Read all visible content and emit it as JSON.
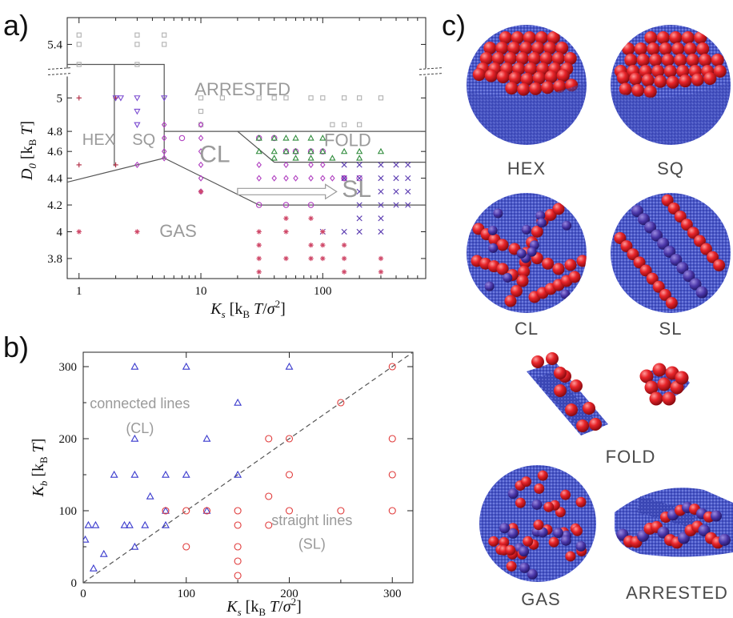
{
  "panel_labels": {
    "a": "a)",
    "b": "b)",
    "c": "c)"
  },
  "colors": {
    "gas": "#d04a6a",
    "hex": "#b02840",
    "sq": "#7a4ad0",
    "cl": "#b040c0",
    "fold": "#2e8a3a",
    "sl": "#5a3ab0",
    "arrested": "#b0b0b0",
    "cl_b": "#3a3acd",
    "sl_b": "#e03a3a",
    "boundary": "#555555",
    "region": "#9a9a9a"
  },
  "chart_data": [
    {
      "id": "a",
      "type": "scatter",
      "xlabel": "K_s  [k_B T/σ^2]",
      "ylabel": "D_0  [k_B T]",
      "xscale": "log",
      "xlim": [
        0.8,
        700
      ],
      "ylim": [
        3.65,
        5.6
      ],
      "yaxis_break": "between 5.0 and 5.4",
      "xticks": [
        {
          "v": 1,
          "label": "1"
        },
        {
          "v": 10,
          "label": "10"
        },
        {
          "v": 100,
          "label": "100"
        }
      ],
      "yticks": [
        {
          "v": 3.8,
          "label": "3.8"
        },
        {
          "v": 4.0,
          "label": "4"
        },
        {
          "v": 4.2,
          "label": "4.2"
        },
        {
          "v": 4.4,
          "label": "4.4"
        },
        {
          "v": 4.6,
          "label": "4.6"
        },
        {
          "v": 4.75,
          "label": "4.8"
        },
        {
          "v": 5.0,
          "label": "5"
        },
        {
          "v": 5.4,
          "label": "5.4"
        }
      ],
      "regions": [
        {
          "name": "ARRESTED",
          "x": 22,
          "y": 5.02,
          "size": 22
        },
        {
          "name": "HEX",
          "x": 1.45,
          "y": 4.65,
          "size": 20
        },
        {
          "name": "SQ",
          "x": 3.4,
          "y": 4.65,
          "size": 20
        },
        {
          "name": "FOLD",
          "x": 160,
          "y": 4.64,
          "size": 22
        },
        {
          "name": "CL",
          "x": 13,
          "y": 4.52,
          "size": 30
        },
        {
          "name": "SL",
          "x": 190,
          "y": 4.26,
          "size": 30
        },
        {
          "name": "GAS",
          "x": 6.5,
          "y": 3.96,
          "size": 22
        }
      ],
      "boundaries": [
        [
          [
            0.8,
            5.25
          ],
          [
            5,
            5.25
          ],
          [
            5,
            4.55
          ]
        ],
        [
          [
            1.95,
            5.25
          ],
          [
            1.95,
            4.49
          ]
        ],
        [
          [
            0.8,
            4.37
          ],
          [
            5,
            4.55
          ],
          [
            30,
            4.2
          ],
          [
            700,
            4.2
          ]
        ],
        [
          [
            5,
            4.75
          ],
          [
            700,
            4.75
          ]
        ],
        [
          [
            20,
            4.75
          ],
          [
            40,
            4.52
          ],
          [
            700,
            4.52
          ]
        ]
      ],
      "arrow": {
        "from": [
          20,
          4.3
        ],
        "to": [
          130,
          4.3
        ]
      },
      "series": [
        {
          "phase": "arrested",
          "marker": "square",
          "x": [
            1,
            1,
            1,
            3,
            3,
            3,
            5,
            5,
            10,
            10,
            10,
            15,
            30,
            40,
            50,
            80,
            100,
            150,
            200,
            300,
            120,
            150,
            200
          ],
          "y": [
            5.47,
            5.4,
            5.25,
            5.47,
            5.4,
            5.25,
            5.47,
            5.4,
            5.0,
            4.9,
            4.8,
            5.0,
            5.0,
            5.0,
            5.0,
            5.0,
            5.0,
            5.0,
            5.0,
            5.0,
            4.8,
            4.8,
            4.8
          ]
        },
        {
          "phase": "hex",
          "marker": "plus",
          "x": [
            1,
            1,
            2,
            2
          ],
          "y": [
            5.0,
            4.5,
            5.0,
            4.5
          ]
        },
        {
          "phase": "sq",
          "marker": "triangle-down",
          "x": [
            2.0,
            2.2,
            3,
            3,
            3,
            5
          ],
          "y": [
            5.0,
            5.0,
            5.0,
            4.9,
            4.8,
            5.0
          ]
        },
        {
          "phase": "cl",
          "marker": "diamond",
          "x": [
            5,
            5,
            5,
            5,
            10,
            10,
            10,
            10,
            10,
            10,
            3,
            30,
            50,
            80,
            100,
            30,
            40,
            50,
            60,
            80,
            100,
            120,
            150,
            30,
            50,
            80,
            100
          ],
          "y": [
            4.8,
            4.7,
            4.6,
            4.55,
            4.8,
            4.7,
            4.6,
            4.5,
            4.4,
            4.3,
            4.5,
            4.5,
            4.5,
            4.5,
            4.5,
            4.4,
            4.4,
            4.4,
            4.4,
            4.4,
            4.4,
            4.4,
            4.4,
            4.3,
            4.3,
            4.3,
            4.3
          ]
        },
        {
          "phase": "cl-circle",
          "marker": "circle",
          "x": [
            7,
            30,
            40,
            50,
            60,
            80,
            100,
            150,
            200,
            30,
            50,
            80
          ],
          "y": [
            4.7,
            4.7,
            4.7,
            4.6,
            4.6,
            4.6,
            4.6,
            4.4,
            4.4,
            4.2,
            4.2,
            4.2
          ]
        },
        {
          "phase": "fold",
          "marker": "triangle",
          "x": [
            30,
            40,
            50,
            60,
            80,
            100,
            30,
            40,
            50,
            60,
            80,
            100,
            150,
            200,
            300,
            40,
            60,
            80,
            120,
            200
          ],
          "y": [
            4.7,
            4.7,
            4.7,
            4.7,
            4.7,
            4.7,
            4.6,
            4.6,
            4.6,
            4.6,
            4.6,
            4.6,
            4.6,
            4.6,
            4.6,
            4.55,
            4.55,
            4.55,
            4.55,
            4.55
          ]
        },
        {
          "phase": "sl",
          "marker": "cross",
          "x": [
            150,
            200,
            300,
            400,
            500,
            150,
            200,
            300,
            400,
            500,
            200,
            300,
            400,
            500,
            200,
            300,
            400,
            500,
            200,
            300,
            150,
            100,
            200,
            300
          ],
          "y": [
            4.5,
            4.5,
            4.5,
            4.5,
            4.5,
            4.4,
            4.4,
            4.4,
            4.4,
            4.4,
            4.3,
            4.3,
            4.3,
            4.3,
            4.2,
            4.2,
            4.2,
            4.2,
            4.1,
            4.1,
            4.0,
            4.0,
            4.0,
            4.0
          ]
        },
        {
          "phase": "gas",
          "marker": "asterisk",
          "x": [
            1,
            3,
            10,
            30,
            30,
            30,
            30,
            50,
            50,
            50,
            80,
            80,
            80,
            100,
            100,
            100,
            150,
            150,
            150,
            300,
            300
          ],
          "y": [
            4.0,
            4.0,
            4.3,
            4.0,
            3.9,
            3.8,
            3.7,
            4.1,
            4.0,
            3.8,
            4.1,
            3.9,
            3.8,
            4.0,
            3.9,
            3.8,
            3.9,
            3.8,
            3.7,
            3.8,
            3.7
          ]
        }
      ]
    },
    {
      "id": "b",
      "type": "scatter",
      "xlabel": "K_s  [k_B T/σ^2]",
      "ylabel": "K_b  [k_B T]",
      "xlim": [
        0,
        320
      ],
      "ylim": [
        0,
        320
      ],
      "xticks": [
        0,
        100,
        200,
        300
      ],
      "yticks": [
        0,
        100,
        200,
        300
      ],
      "diagonal": [
        [
          0,
          0
        ],
        [
          320,
          320
        ]
      ],
      "annotations": [
        {
          "text": "connected lines",
          "x": 55,
          "y": 242
        },
        {
          "text": "(CL)",
          "x": 55,
          "y": 208
        },
        {
          "text": "straight lines",
          "x": 222,
          "y": 80
        },
        {
          "text": "(SL)",
          "x": 222,
          "y": 47
        }
      ],
      "series": [
        {
          "name": "CL",
          "marker": "triangle",
          "x": [
            2,
            5,
            10,
            12,
            20,
            30,
            40,
            45,
            50,
            50,
            50,
            50,
            60,
            65,
            80,
            80,
            80,
            100,
            100,
            120,
            120,
            150,
            150,
            200
          ],
          "y": [
            60,
            80,
            20,
            80,
            40,
            150,
            80,
            80,
            50,
            150,
            200,
            300,
            80,
            120,
            80,
            100,
            150,
            150,
            300,
            100,
            200,
            150,
            250,
            300
          ]
        },
        {
          "name": "SL",
          "marker": "circle",
          "x": [
            80,
            100,
            100,
            120,
            150,
            150,
            150,
            150,
            150,
            180,
            180,
            180,
            200,
            200,
            200,
            250,
            250,
            300,
            300,
            300,
            300
          ],
          "y": [
            100,
            50,
            100,
            100,
            10,
            30,
            50,
            80,
            100,
            80,
            120,
            200,
            100,
            150,
            200,
            100,
            250,
            100,
            150,
            200,
            300
          ]
        }
      ]
    }
  ],
  "snapshots": [
    {
      "label": "HEX",
      "type": "disk",
      "pattern": "hex"
    },
    {
      "label": "SQ",
      "type": "disk",
      "pattern": "sq"
    },
    {
      "label": "CL",
      "type": "disk",
      "pattern": "cl"
    },
    {
      "label": "SL",
      "type": "disk",
      "pattern": "sl"
    },
    {
      "label": "FOLD",
      "type": "fold"
    },
    {
      "label": "GAS",
      "type": "disk",
      "pattern": "gas"
    },
    {
      "label": "ARRESTED",
      "type": "arrested"
    }
  ]
}
